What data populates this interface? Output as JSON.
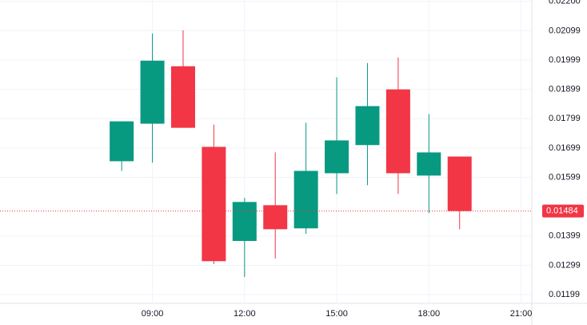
{
  "chart_data": {
    "type": "candlestick",
    "x": [
      8,
      9,
      10,
      11,
      12,
      13,
      14,
      15,
      16,
      17,
      18,
      19
    ],
    "open": [
      0.01654,
      0.01782,
      0.01978,
      0.01703,
      0.01382,
      0.01504,
      0.01425,
      0.01613,
      0.01709,
      0.01899,
      0.01605,
      0.0167
    ],
    "high": [
      0.0179,
      0.0209,
      0.02101,
      0.01779,
      0.01529,
      0.01684,
      0.01785,
      0.0194,
      0.01989,
      0.02008,
      0.01815,
      0.0167
    ],
    "low": [
      0.01621,
      0.01649,
      0.01768,
      0.01303,
      0.01259,
      0.01322,
      0.01406,
      0.01542,
      0.01572,
      0.01542,
      0.01477,
      0.01422
    ],
    "close": [
      0.0179,
      0.01997,
      0.01768,
      0.01313,
      0.01515,
      0.01422,
      0.01621,
      0.01725,
      0.01842,
      0.01613,
      0.01684,
      0.01484
    ],
    "up_color": "#089981",
    "down_color": "#f23645",
    "last_price": 0.01484,
    "xlim": [
      4.04,
      21.35
    ],
    "xticks": [
      {
        "value": 9,
        "label": "09:00"
      },
      {
        "value": 12,
        "label": "12:00"
      },
      {
        "value": 15,
        "label": "15:00"
      },
      {
        "value": 18,
        "label": "18:00"
      },
      {
        "value": 21,
        "label": "21:00"
      }
    ],
    "ylim": [
      0.01169,
      0.02204
    ],
    "yticks": [
      {
        "value": 0.022,
        "label": "0.02200"
      },
      0.02099,
      0.01999,
      0.01899,
      0.01799,
      0.01699,
      0.01599,
      0.01399,
      0.01299,
      0.01199
    ],
    "grid": true
  }
}
